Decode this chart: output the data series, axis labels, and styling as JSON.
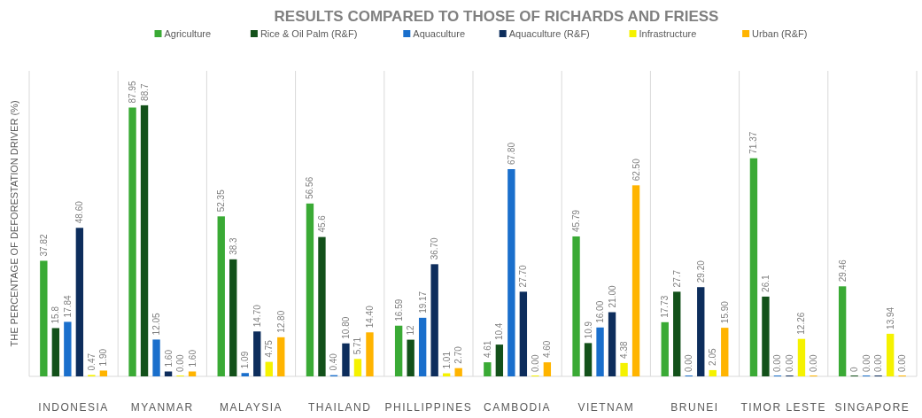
{
  "chart_data": {
    "type": "bar",
    "title": "RESULTS COMPARED TO THOSE OF RICHARDS AND FRIESS",
    "ylabel": "THE PERCENTAGE OF DEFORESTATION DRIVER (%)",
    "categories": [
      "INDONESIA",
      "MYANMAR",
      "MALAYSIA",
      "THAILAND",
      "PHILLIPPINES",
      "CAMBODIA",
      "VIETNAM",
      "BRUNEI",
      "TIMOR LESTE",
      "SINGAPORE"
    ],
    "legend": "top",
    "grid": "x",
    "series": [
      {
        "name": "Agriculture",
        "color": "#3aaa35",
        "values": [
          37.82,
          87.95,
          52.35,
          56.56,
          16.59,
          4.61,
          45.79,
          17.73,
          71.37,
          29.46
        ],
        "value_labels": [
          "37.82",
          "87.95",
          "52.35",
          "56.56",
          "16.59",
          "4.61",
          "45.79",
          "17.73",
          "71.37",
          "29.46"
        ]
      },
      {
        "name": "Rice & Oil Palm (R&F)",
        "color": "#13511a",
        "values": [
          15.8,
          88.7,
          38.3,
          45.6,
          12,
          10.4,
          10.9,
          27.7,
          26.1,
          0
        ],
        "value_labels": [
          "15.8",
          "88.7",
          "38.3",
          "45.6",
          "12",
          "10.4",
          "10.9",
          "27.7",
          "26.1",
          "0"
        ]
      },
      {
        "name": "Aquaculture",
        "color": "#1a6fcc",
        "values": [
          17.84,
          12.05,
          1.09,
          0.4,
          19.17,
          67.8,
          16,
          0,
          0,
          0
        ],
        "value_labels": [
          "17.84",
          "12.05",
          "1.09",
          "0.40",
          "19.17",
          "67.80",
          "16.00",
          "0.00",
          "0.00",
          "0.00"
        ]
      },
      {
        "name": "Aquaculture (R&F)",
        "color": "#0d2d5c",
        "values": [
          48.6,
          1.6,
          14.7,
          10.8,
          36.7,
          27.7,
          21,
          29.2,
          0,
          0
        ],
        "value_labels": [
          "48.60",
          "1.60",
          "14.70",
          "10.80",
          "36.70",
          "27.70",
          "21.00",
          "29.20",
          "0.00",
          "0.00"
        ]
      },
      {
        "name": "Infrastructure",
        "color": "#f5f200",
        "values": [
          0.47,
          0,
          4.75,
          5.71,
          1.01,
          0,
          4.38,
          2.05,
          12.26,
          13.94
        ],
        "value_labels": [
          "0.47",
          "0.00",
          "4.75",
          "5.71",
          "1.01",
          "0.00",
          "4.38",
          "2.05",
          "12.26",
          "13.94"
        ]
      },
      {
        "name": "Urban (R&F)",
        "color": "#ffb400",
        "values": [
          1.9,
          1.6,
          12.8,
          14.4,
          2.7,
          4.6,
          62.5,
          15.9,
          0,
          0
        ],
        "value_labels": [
          "1.90",
          "1.60",
          "12.80",
          "14.40",
          "2.70",
          "4.60",
          "62.50",
          "15.90",
          "0.00",
          "0.00"
        ]
      }
    ]
  }
}
